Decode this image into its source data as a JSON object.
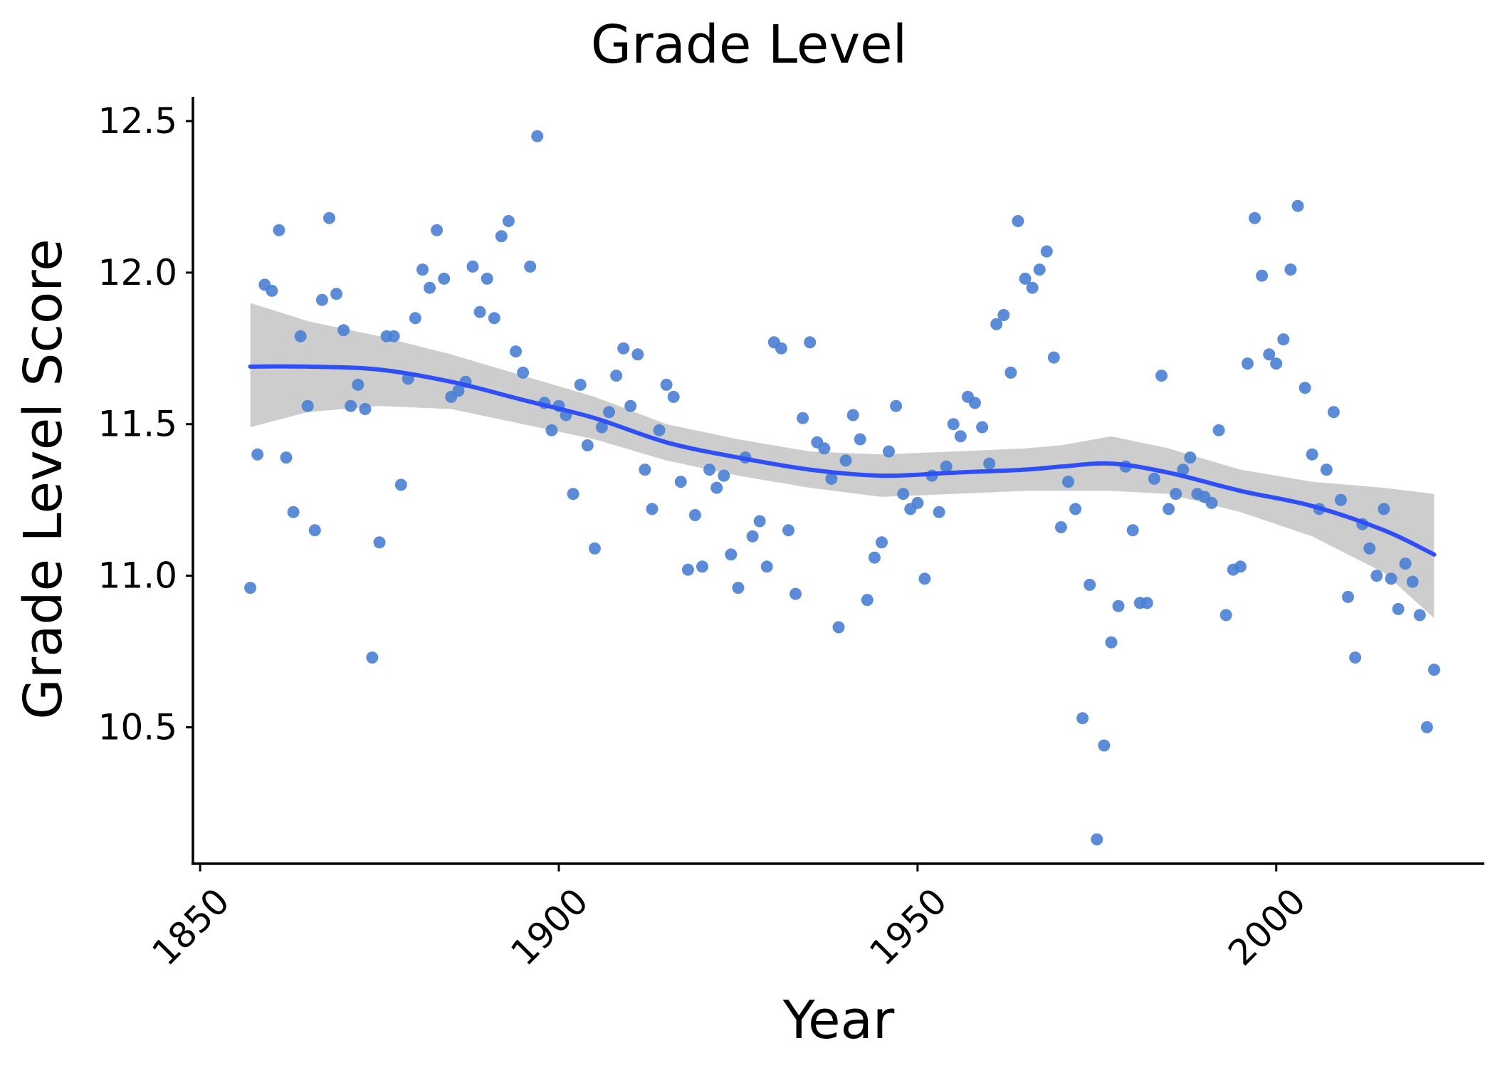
{
  "chart_data": {
    "type": "scatter",
    "title": "Grade Level",
    "xlabel": "Year",
    "ylabel": "Grade Level Score",
    "xlim": [
      1849,
      2029
    ],
    "ylim": [
      10.05,
      12.58
    ],
    "xticks": [
      1850,
      1900,
      1950,
      2000
    ],
    "yticks": [
      10.5,
      11.0,
      11.5,
      12.0,
      12.5
    ],
    "xtick_labels": [
      "1850",
      "1900",
      "1950",
      "2000"
    ],
    "ytick_labels": [
      "10.5",
      "11.0",
      "11.5",
      "12.0",
      "12.5"
    ],
    "grid": false,
    "legend": "none",
    "colors": {
      "points": "#4a7fd4",
      "trend": "#2f4ff5",
      "band": "#c8c8c8",
      "axis": "#000000"
    },
    "series": [
      {
        "type": "scatter",
        "points": [
          [
            1857,
            10.96
          ],
          [
            1858,
            11.4
          ],
          [
            1859,
            11.96
          ],
          [
            1860,
            11.94
          ],
          [
            1861,
            12.14
          ],
          [
            1862,
            11.39
          ],
          [
            1863,
            11.21
          ],
          [
            1864,
            11.79
          ],
          [
            1865,
            11.56
          ],
          [
            1866,
            11.15
          ],
          [
            1867,
            11.91
          ],
          [
            1868,
            12.18
          ],
          [
            1869,
            11.93
          ],
          [
            1870,
            11.81
          ],
          [
            1871,
            11.56
          ],
          [
            1872,
            11.63
          ],
          [
            1873,
            11.55
          ],
          [
            1874,
            10.73
          ],
          [
            1875,
            11.11
          ],
          [
            1876,
            11.79
          ],
          [
            1877,
            11.79
          ],
          [
            1878,
            11.3
          ],
          [
            1879,
            11.65
          ],
          [
            1880,
            11.85
          ],
          [
            1881,
            12.01
          ],
          [
            1882,
            11.95
          ],
          [
            1883,
            12.14
          ],
          [
            1884,
            11.98
          ],
          [
            1885,
            11.59
          ],
          [
            1886,
            11.61
          ],
          [
            1887,
            11.64
          ],
          [
            1888,
            12.02
          ],
          [
            1889,
            11.87
          ],
          [
            1890,
            11.98
          ],
          [
            1891,
            11.85
          ],
          [
            1892,
            12.12
          ],
          [
            1893,
            12.17
          ],
          [
            1894,
            11.74
          ],
          [
            1895,
            11.67
          ],
          [
            1896,
            12.02
          ],
          [
            1897,
            12.45
          ],
          [
            1898,
            11.57
          ],
          [
            1899,
            11.48
          ],
          [
            1900,
            11.56
          ],
          [
            1901,
            11.53
          ],
          [
            1902,
            11.27
          ],
          [
            1903,
            11.63
          ],
          [
            1904,
            11.43
          ],
          [
            1905,
            11.09
          ],
          [
            1906,
            11.49
          ],
          [
            1907,
            11.54
          ],
          [
            1908,
            11.66
          ],
          [
            1909,
            11.75
          ],
          [
            1910,
            11.56
          ],
          [
            1911,
            11.73
          ],
          [
            1912,
            11.35
          ],
          [
            1913,
            11.22
          ],
          [
            1914,
            11.48
          ],
          [
            1915,
            11.63
          ],
          [
            1916,
            11.59
          ],
          [
            1917,
            11.31
          ],
          [
            1918,
            11.02
          ],
          [
            1919,
            11.2
          ],
          [
            1920,
            11.03
          ],
          [
            1921,
            11.35
          ],
          [
            1922,
            11.29
          ],
          [
            1923,
            11.33
          ],
          [
            1924,
            11.07
          ],
          [
            1925,
            10.96
          ],
          [
            1926,
            11.39
          ],
          [
            1927,
            11.13
          ],
          [
            1928,
            11.18
          ],
          [
            1929,
            11.03
          ],
          [
            1930,
            11.77
          ],
          [
            1931,
            11.75
          ],
          [
            1932,
            11.15
          ],
          [
            1933,
            10.94
          ],
          [
            1934,
            11.52
          ],
          [
            1935,
            11.77
          ],
          [
            1936,
            11.44
          ],
          [
            1937,
            11.42
          ],
          [
            1938,
            11.32
          ],
          [
            1939,
            10.83
          ],
          [
            1940,
            11.38
          ],
          [
            1941,
            11.53
          ],
          [
            1942,
            11.45
          ],
          [
            1943,
            10.92
          ],
          [
            1944,
            11.06
          ],
          [
            1945,
            11.11
          ],
          [
            1946,
            11.41
          ],
          [
            1947,
            11.56
          ],
          [
            1948,
            11.27
          ],
          [
            1949,
            11.22
          ],
          [
            1950,
            11.24
          ],
          [
            1951,
            10.99
          ],
          [
            1952,
            11.33
          ],
          [
            1953,
            11.21
          ],
          [
            1954,
            11.36
          ],
          [
            1955,
            11.5
          ],
          [
            1956,
            11.46
          ],
          [
            1957,
            11.59
          ],
          [
            1958,
            11.57
          ],
          [
            1959,
            11.49
          ],
          [
            1960,
            11.37
          ],
          [
            1961,
            11.83
          ],
          [
            1962,
            11.86
          ],
          [
            1963,
            11.67
          ],
          [
            1964,
            12.17
          ],
          [
            1965,
            11.98
          ],
          [
            1966,
            11.95
          ],
          [
            1967,
            12.01
          ],
          [
            1968,
            12.07
          ],
          [
            1969,
            11.72
          ],
          [
            1970,
            11.16
          ],
          [
            1971,
            11.31
          ],
          [
            1972,
            11.22
          ],
          [
            1973,
            10.53
          ],
          [
            1974,
            10.97
          ],
          [
            1975,
            10.13
          ],
          [
            1976,
            10.44
          ],
          [
            1977,
            10.78
          ],
          [
            1978,
            10.9
          ],
          [
            1979,
            11.36
          ],
          [
            1980,
            11.15
          ],
          [
            1981,
            10.91
          ],
          [
            1982,
            10.91
          ],
          [
            1983,
            11.32
          ],
          [
            1984,
            11.66
          ],
          [
            1985,
            11.22
          ],
          [
            1986,
            11.27
          ],
          [
            1987,
            11.35
          ],
          [
            1988,
            11.39
          ],
          [
            1989,
            11.27
          ],
          [
            1990,
            11.26
          ],
          [
            1991,
            11.24
          ],
          [
            1992,
            11.48
          ],
          [
            1993,
            10.87
          ],
          [
            1994,
            11.02
          ],
          [
            1995,
            11.03
          ],
          [
            1996,
            11.7
          ],
          [
            1997,
            12.18
          ],
          [
            1998,
            11.99
          ],
          [
            1999,
            11.73
          ],
          [
            2000,
            11.7
          ],
          [
            2001,
            11.78
          ],
          [
            2002,
            12.01
          ],
          [
            2003,
            12.22
          ],
          [
            2004,
            11.62
          ],
          [
            2005,
            11.4
          ],
          [
            2006,
            11.22
          ],
          [
            2007,
            11.35
          ],
          [
            2008,
            11.54
          ],
          [
            2009,
            11.25
          ],
          [
            2010,
            10.93
          ],
          [
            2011,
            10.73
          ],
          [
            2012,
            11.17
          ],
          [
            2013,
            11.09
          ],
          [
            2014,
            11.0
          ],
          [
            2015,
            11.22
          ],
          [
            2016,
            10.99
          ],
          [
            2017,
            10.89
          ],
          [
            2018,
            11.04
          ],
          [
            2019,
            10.98
          ],
          [
            2020,
            10.87
          ],
          [
            2021,
            10.5
          ],
          [
            2022,
            10.69
          ]
        ]
      },
      {
        "type": "smooth",
        "x": [
          1857,
          1865,
          1875,
          1885,
          1895,
          1905,
          1915,
          1925,
          1935,
          1945,
          1955,
          1965,
          1970,
          1977,
          1985,
          1995,
          2005,
          2015,
          2022
        ],
        "y": [
          11.69,
          11.69,
          11.68,
          11.64,
          11.58,
          11.52,
          11.44,
          11.39,
          11.35,
          11.33,
          11.34,
          11.35,
          11.36,
          11.37,
          11.34,
          11.28,
          11.23,
          11.15,
          11.07
        ],
        "lower": [
          11.49,
          11.54,
          11.56,
          11.55,
          11.5,
          11.45,
          11.38,
          11.33,
          11.29,
          11.26,
          11.27,
          11.28,
          11.28,
          11.28,
          11.27,
          11.21,
          11.13,
          11.01,
          10.86
        ],
        "upper": [
          11.9,
          11.84,
          11.79,
          11.73,
          11.66,
          11.59,
          11.5,
          11.45,
          11.41,
          11.4,
          11.41,
          11.42,
          11.43,
          11.46,
          11.42,
          11.35,
          11.31,
          11.29,
          11.27
        ]
      }
    ]
  }
}
